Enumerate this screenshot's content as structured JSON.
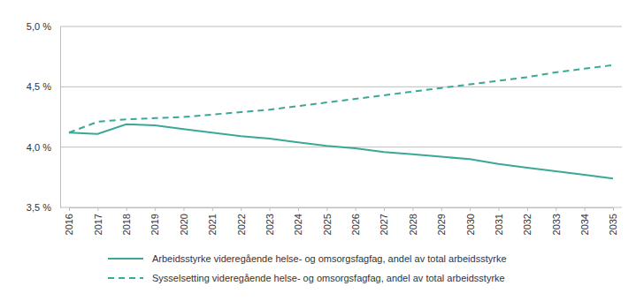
{
  "chart_data": {
    "type": "line",
    "categories": [
      "2016",
      "2017",
      "2018",
      "2019",
      "2020",
      "2021",
      "2022",
      "2023",
      "2024",
      "2025",
      "2026",
      "2027",
      "2028",
      "2029",
      "2030",
      "2031",
      "2032",
      "2033",
      "2034",
      "2035"
    ],
    "series": [
      {
        "name": "Arbeidsstyrke videregående helse- og omsorgsfagfag, andel av total arbeidsstyrke",
        "color": "#3aa897",
        "line_style": "solid",
        "values": [
          4.12,
          4.11,
          4.19,
          4.18,
          4.15,
          4.12,
          4.09,
          4.07,
          4.04,
          4.01,
          3.99,
          3.96,
          3.94,
          3.92,
          3.9,
          3.86,
          3.83,
          3.8,
          3.77,
          3.74
        ]
      },
      {
        "name": "Sysselsetting videregående helse- og omsorgsfagfag, andel av total arbeidsstyrke",
        "color": "#3aa897",
        "line_style": "dashed",
        "values": [
          4.12,
          4.21,
          4.23,
          4.24,
          4.25,
          4.27,
          4.29,
          4.31,
          4.34,
          4.37,
          4.4,
          4.43,
          4.46,
          4.49,
          4.52,
          4.55,
          4.58,
          4.62,
          4.65,
          4.68
        ]
      }
    ],
    "ylim": [
      3.5,
      5.0
    ],
    "yticks": [
      {
        "value": 3.5,
        "label": "3,5 %"
      },
      {
        "value": 4.0,
        "label": "4,0 %"
      },
      {
        "value": 4.5,
        "label": "4,5 %"
      },
      {
        "value": 5.0,
        "label": "5,0 %"
      }
    ],
    "grid": true,
    "legend": "bottom"
  }
}
